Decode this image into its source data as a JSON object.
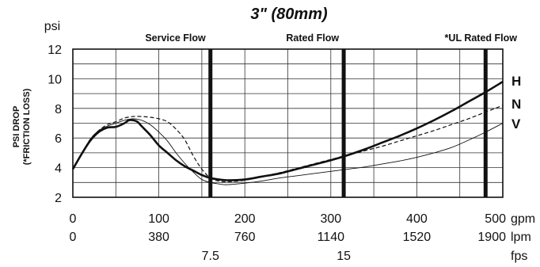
{
  "chart_data": {
    "type": "line",
    "title": "3\" (80mm)",
    "y_unit_label": "psi",
    "ylabel": "PSI DROP\n(*FRICTION LOSS)",
    "ylim": [
      2,
      12
    ],
    "yticks": [
      2,
      4,
      6,
      8,
      10,
      12
    ],
    "xlim": [
      0,
      500
    ],
    "x_axes": [
      {
        "unit": "gpm",
        "ticks": [
          {
            "v": 0,
            "label": "0"
          },
          {
            "v": 100,
            "label": "100"
          },
          {
            "v": 200,
            "label": "200"
          },
          {
            "v": 300,
            "label": "300"
          },
          {
            "v": 400,
            "label": "400"
          },
          {
            "v": 500,
            "label": "500"
          }
        ]
      },
      {
        "unit": "lpm",
        "ticks": [
          {
            "v": 0,
            "label": "0"
          },
          {
            "v": 100,
            "label": "380"
          },
          {
            "v": 200,
            "label": "760"
          },
          {
            "v": 300,
            "label": "1140"
          },
          {
            "v": 400,
            "label": "1520"
          },
          {
            "v": 500,
            "label": "1900"
          }
        ]
      },
      {
        "unit": "fps",
        "ticks": [
          {
            "v": 160,
            "label": "7.5"
          },
          {
            "v": 315,
            "label": "15"
          }
        ]
      }
    ],
    "vlines": [
      {
        "x": 160,
        "label": "Service Flow"
      },
      {
        "x": 315,
        "label": "Rated Flow"
      },
      {
        "x": 480,
        "label": "*UL Rated Flow"
      }
    ],
    "grid": true,
    "series": [
      {
        "name": "H",
        "style": "bold",
        "x": [
          0,
          10,
          20,
          30,
          40,
          50,
          60,
          65,
          70,
          75,
          80,
          90,
          100,
          110,
          120,
          130,
          140,
          150,
          160,
          170,
          180,
          200,
          220,
          240,
          260,
          280,
          300,
          320,
          340,
          360,
          380,
          400,
          420,
          440,
          460,
          480,
          500
        ],
        "values": [
          3.9,
          4.9,
          5.8,
          6.4,
          6.7,
          6.75,
          7.0,
          7.2,
          7.2,
          7.1,
          6.8,
          6.2,
          5.5,
          5.0,
          4.5,
          4.1,
          3.8,
          3.5,
          3.3,
          3.2,
          3.15,
          3.2,
          3.4,
          3.6,
          3.9,
          4.2,
          4.5,
          4.85,
          5.25,
          5.7,
          6.15,
          6.65,
          7.2,
          7.8,
          8.45,
          9.1,
          9.8
        ]
      },
      {
        "name": "N",
        "style": "dashed",
        "x": [
          0,
          10,
          20,
          30,
          40,
          50,
          60,
          70,
          80,
          90,
          100,
          110,
          120,
          130,
          140,
          150,
          160,
          170,
          180,
          200,
          220,
          240,
          260,
          280,
          300,
          320,
          340,
          360,
          380,
          400,
          420,
          440,
          460,
          480,
          500
        ],
        "values": [
          3.9,
          4.9,
          5.9,
          6.5,
          6.9,
          7.1,
          7.35,
          7.45,
          7.45,
          7.4,
          7.3,
          7.1,
          6.6,
          5.9,
          4.8,
          3.9,
          3.3,
          3.1,
          3.05,
          3.15,
          3.4,
          3.65,
          3.95,
          4.25,
          4.55,
          4.85,
          5.15,
          5.45,
          5.8,
          6.15,
          6.5,
          6.9,
          7.3,
          7.75,
          8.2
        ]
      },
      {
        "name": "V",
        "style": "thin",
        "x": [
          0,
          10,
          20,
          30,
          40,
          50,
          60,
          70,
          80,
          90,
          100,
          110,
          120,
          130,
          140,
          150,
          160,
          170,
          180,
          200,
          220,
          240,
          260,
          280,
          300,
          320,
          340,
          360,
          380,
          400,
          420,
          440,
          460,
          480,
          500
        ],
        "values": [
          3.9,
          4.9,
          5.9,
          6.5,
          6.8,
          7.0,
          7.2,
          7.3,
          7.2,
          6.9,
          6.4,
          5.8,
          5.0,
          4.3,
          3.7,
          3.2,
          3.0,
          2.9,
          2.85,
          2.95,
          3.1,
          3.3,
          3.45,
          3.6,
          3.75,
          3.9,
          4.05,
          4.25,
          4.45,
          4.7,
          5.0,
          5.35,
          5.85,
          6.4,
          7.0
        ]
      }
    ]
  }
}
